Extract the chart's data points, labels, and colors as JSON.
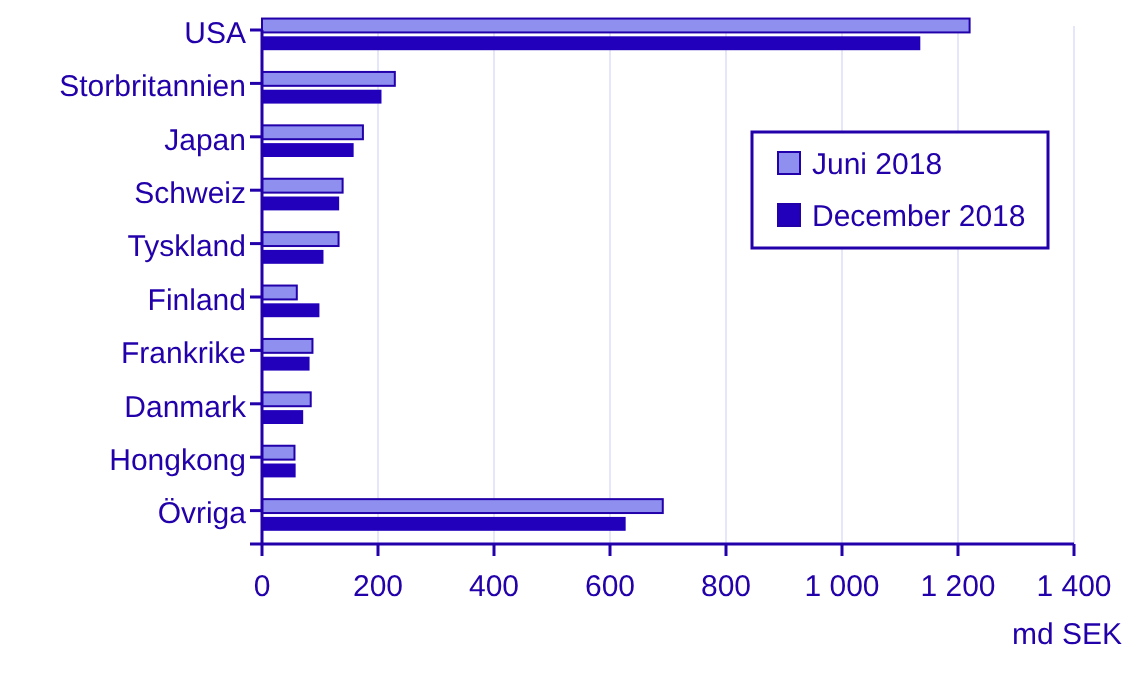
{
  "chart_data": {
    "type": "bar",
    "orientation": "horizontal",
    "categories": [
      "USA",
      "Storbritannien",
      "Japan",
      "Schweiz",
      "Tyskland",
      "Finland",
      "Frankrike",
      "Danmark",
      "Hongkong",
      "Övriga"
    ],
    "series": [
      {
        "name": "Juni 2018",
        "color": "#8f8ff0",
        "values": [
          1220,
          229,
          174,
          139,
          132,
          60,
          87,
          84,
          56,
          691
        ]
      },
      {
        "name": "December 2018",
        "color": "#2200bb",
        "values": [
          1135,
          206,
          158,
          133,
          106,
          99,
          82,
          71,
          58,
          627
        ]
      }
    ],
    "xlim": [
      0,
      1400
    ],
    "xticks": [
      0,
      200,
      400,
      600,
      800,
      {
        "value": 1000,
        "label": "1 000"
      },
      {
        "value": 1200,
        "label": "1 200"
      },
      {
        "value": 1400,
        "label": "1 400"
      }
    ],
    "xlabel": "md SEK",
    "grid": "x",
    "legend": "right"
  }
}
